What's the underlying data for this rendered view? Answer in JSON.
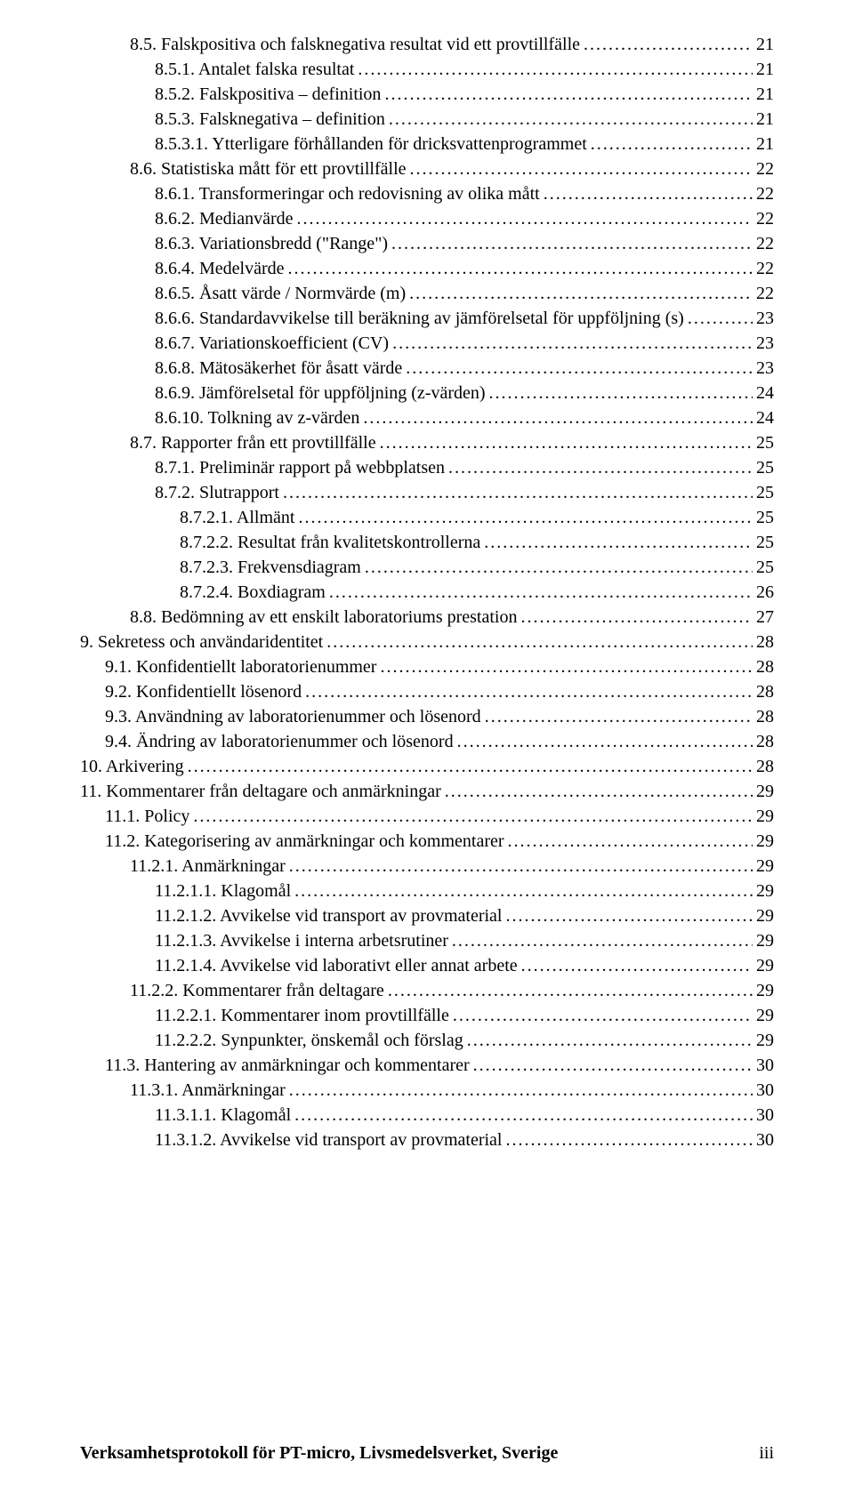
{
  "toc": [
    {
      "indent": 2,
      "label": "8.5. Falskpositiva och falsknegativa resultat vid ett provtillfälle",
      "page": "21"
    },
    {
      "indent": 3,
      "label": "8.5.1. Antalet falska resultat",
      "page": "21"
    },
    {
      "indent": 3,
      "label": "8.5.2. Falskpositiva – definition",
      "page": "21"
    },
    {
      "indent": 3,
      "label": "8.5.3. Falsknegativa – definition",
      "page": "21"
    },
    {
      "indent": 3,
      "label": "8.5.3.1. Ytterligare förhållanden för dricksvattenprogrammet",
      "page": "21"
    },
    {
      "indent": 2,
      "label": "8.6. Statistiska mått för ett provtillfälle",
      "page": "22"
    },
    {
      "indent": 3,
      "label": "8.6.1. Transformeringar och redovisning av olika mått",
      "page": "22"
    },
    {
      "indent": 3,
      "label": "8.6.2. Medianvärde",
      "page": "22"
    },
    {
      "indent": 3,
      "label": "8.6.3. Variationsbredd (\"Range\")",
      "page": "22"
    },
    {
      "indent": 3,
      "label": "8.6.4. Medelvärde",
      "page": "22"
    },
    {
      "indent": 3,
      "label": "8.6.5. Åsatt värde / Normvärde (m)",
      "page": "22"
    },
    {
      "indent": 3,
      "label": "8.6.6. Standardavvikelse till beräkning av jämförelsetal för uppföljning (s)",
      "page": "23"
    },
    {
      "indent": 3,
      "label": "8.6.7. Variationskoefficient (CV)",
      "page": "23"
    },
    {
      "indent": 3,
      "label": "8.6.8. Mätosäkerhet för åsatt värde",
      "page": "23"
    },
    {
      "indent": 3,
      "label": "8.6.9. Jämförelsetal för uppföljning (z-värden)",
      "page": "24"
    },
    {
      "indent": 3,
      "label": "8.6.10. Tolkning av z-värden",
      "page": "24"
    },
    {
      "indent": 2,
      "label": "8.7. Rapporter från ett provtillfälle",
      "page": "25"
    },
    {
      "indent": 3,
      "label": "8.7.1. Preliminär rapport på webbplatsen",
      "page": "25"
    },
    {
      "indent": 3,
      "label": "8.7.2. Slutrapport",
      "page": "25"
    },
    {
      "indent": 4,
      "label": "8.7.2.1. Allmänt",
      "page": "25"
    },
    {
      "indent": 4,
      "label": "8.7.2.2. Resultat från kvalitetskontrollerna",
      "page": "25"
    },
    {
      "indent": 4,
      "label": "8.7.2.3. Frekvensdiagram",
      "page": "25"
    },
    {
      "indent": 4,
      "label": "8.7.2.4. Boxdiagram",
      "page": "26"
    },
    {
      "indent": 2,
      "label": "8.8. Bedömning av ett enskilt laboratoriums prestation",
      "page": "27"
    },
    {
      "indent": 0,
      "label": "9. Sekretess och användaridentitet",
      "page": "28"
    },
    {
      "indent": 1,
      "label": "9.1. Konfidentiellt laboratorienummer",
      "page": "28"
    },
    {
      "indent": 1,
      "label": "9.2. Konfidentiellt lösenord",
      "page": "28"
    },
    {
      "indent": 1,
      "label": "9.3. Användning av laboratorienummer och lösenord",
      "page": "28"
    },
    {
      "indent": 1,
      "label": "9.4. Ändring av laboratorienummer och lösenord",
      "page": "28"
    },
    {
      "indent": 0,
      "label": "10. Arkivering",
      "page": "28"
    },
    {
      "indent": 0,
      "label": "11. Kommentarer från deltagare och anmärkningar",
      "page": "29"
    },
    {
      "indent": 1,
      "label": "11.1. Policy",
      "page": "29"
    },
    {
      "indent": 1,
      "label": "11.2. Kategorisering av anmärkningar och kommentarer",
      "page": "29"
    },
    {
      "indent": 2,
      "label": "11.2.1. Anmärkningar",
      "page": "29"
    },
    {
      "indent": 3,
      "label": "11.2.1.1. Klagomål",
      "page": "29"
    },
    {
      "indent": 3,
      "label": "11.2.1.2. Avvikelse vid transport av provmaterial",
      "page": "29"
    },
    {
      "indent": 3,
      "label": "11.2.1.3. Avvikelse i interna arbetsrutiner",
      "page": "29"
    },
    {
      "indent": 3,
      "label": "11.2.1.4. Avvikelse vid laborativt eller annat arbete",
      "page": "29"
    },
    {
      "indent": 2,
      "label": "11.2.2. Kommentarer från deltagare",
      "page": "29"
    },
    {
      "indent": 3,
      "label": "11.2.2.1. Kommentarer inom provtillfälle",
      "page": "29"
    },
    {
      "indent": 3,
      "label": "11.2.2.2. Synpunkter, önskemål och förslag",
      "page": "29"
    },
    {
      "indent": 1,
      "label": "11.3. Hantering av anmärkningar och kommentarer",
      "page": "30"
    },
    {
      "indent": 2,
      "label": "11.3.1. Anmärkningar",
      "page": "30"
    },
    {
      "indent": 3,
      "label": "11.3.1.1. Klagomål",
      "page": "30"
    },
    {
      "indent": 3,
      "label": "11.3.1.2. Avvikelse vid transport av provmaterial",
      "page": "30"
    }
  ],
  "footer": {
    "text": "Verksamhetsprotokoll för PT-micro, Livsmedelsverket, Sverige",
    "page": "iii"
  }
}
